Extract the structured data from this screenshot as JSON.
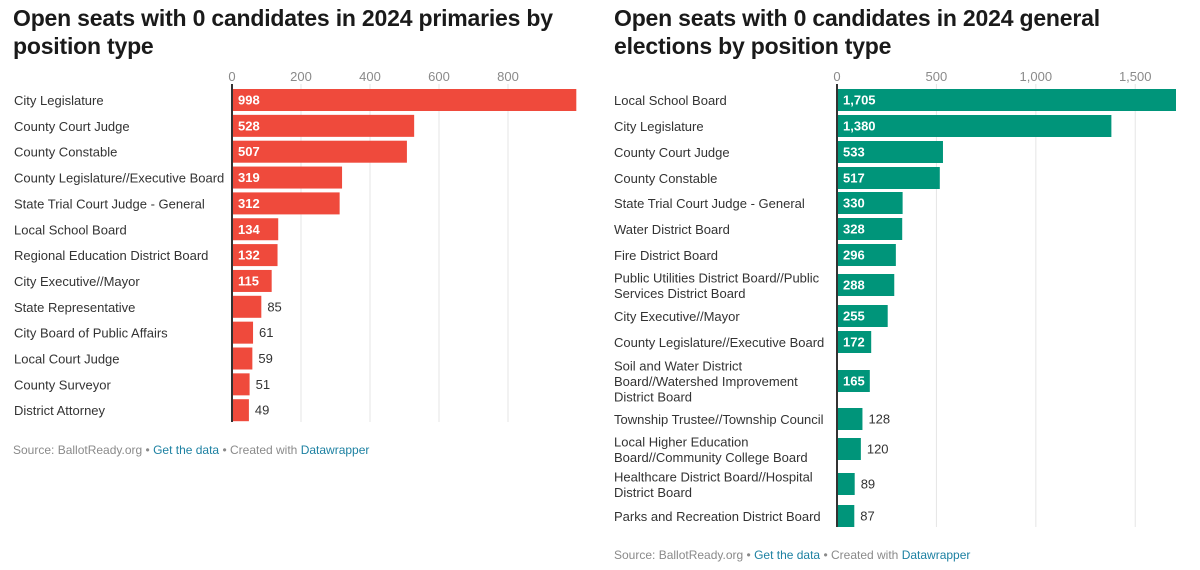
{
  "chart_data": [
    {
      "type": "bar",
      "orientation": "horizontal",
      "title": "Open seats with 0 candidates in 2024 primaries by position type",
      "color": "#ef4a3c",
      "xlim": [
        0,
        1000
      ],
      "ticks": [
        0,
        200,
        400,
        600,
        800
      ],
      "tick_labels": [
        "0",
        "200",
        "400",
        "600",
        "800"
      ],
      "categories": [
        [
          "City Legislature"
        ],
        [
          "County Court Judge"
        ],
        [
          "County Constable"
        ],
        [
          "County Legislature//Executive Board"
        ],
        [
          "State Trial Court Judge - General"
        ],
        [
          "Local School Board"
        ],
        [
          "Regional Education District Board"
        ],
        [
          "City Executive//Mayor"
        ],
        [
          "State Representative"
        ],
        [
          "City Board of Public Affairs"
        ],
        [
          "Local Court Judge"
        ],
        [
          "County Surveyor"
        ],
        [
          "District Attorney"
        ]
      ],
      "values": [
        998,
        528,
        507,
        319,
        312,
        134,
        132,
        115,
        85,
        61,
        59,
        51,
        49
      ],
      "value_labels": [
        "998",
        "528",
        "507",
        "319",
        "312",
        "134",
        "132",
        "115",
        "85",
        "61",
        "59",
        "51",
        "49"
      ],
      "footer": {
        "source": "Source: BallotReady.org",
        "sep1": " • ",
        "get_data": "Get the data",
        "sep2": " • Created with ",
        "tool": "Datawrapper"
      }
    },
    {
      "type": "bar",
      "orientation": "horizontal",
      "title": "Open seats with 0 candidates in 2024 general elections by position type",
      "color": "#00957a",
      "xlim": [
        0,
        1705
      ],
      "ticks": [
        0,
        500,
        1000,
        1500
      ],
      "tick_labels": [
        "0",
        "500",
        "1,000",
        "1,500"
      ],
      "categories": [
        [
          "Local School Board"
        ],
        [
          "City Legislature"
        ],
        [
          "County Court Judge"
        ],
        [
          "County Constable"
        ],
        [
          "State Trial Court Judge - General"
        ],
        [
          "Water District Board"
        ],
        [
          "Fire District Board"
        ],
        [
          "Public Utilities District Board//Public",
          "Services District Board"
        ],
        [
          "City Executive//Mayor"
        ],
        [
          "County Legislature//Executive Board"
        ],
        [
          "Soil and Water District",
          "Board//Watershed Improvement",
          "District Board"
        ],
        [
          "Township Trustee//Township Council"
        ],
        [
          "Local Higher Education",
          "Board//Community College Board"
        ],
        [
          "Healthcare District Board//Hospital",
          "District Board"
        ],
        [
          "Parks and Recreation District Board"
        ]
      ],
      "values": [
        1705,
        1380,
        533,
        517,
        330,
        328,
        296,
        288,
        255,
        172,
        165,
        128,
        120,
        89,
        87
      ],
      "value_labels": [
        "1,705",
        "1,380",
        "533",
        "517",
        "330",
        "328",
        "296",
        "288",
        "255",
        "172",
        "165",
        "128",
        "120",
        "89",
        "87"
      ],
      "footer": {
        "source": "Source: BallotReady.org",
        "sep1": " • ",
        "get_data": "Get the data",
        "sep2": " • Created with ",
        "tool": "Datawrapper"
      }
    }
  ]
}
